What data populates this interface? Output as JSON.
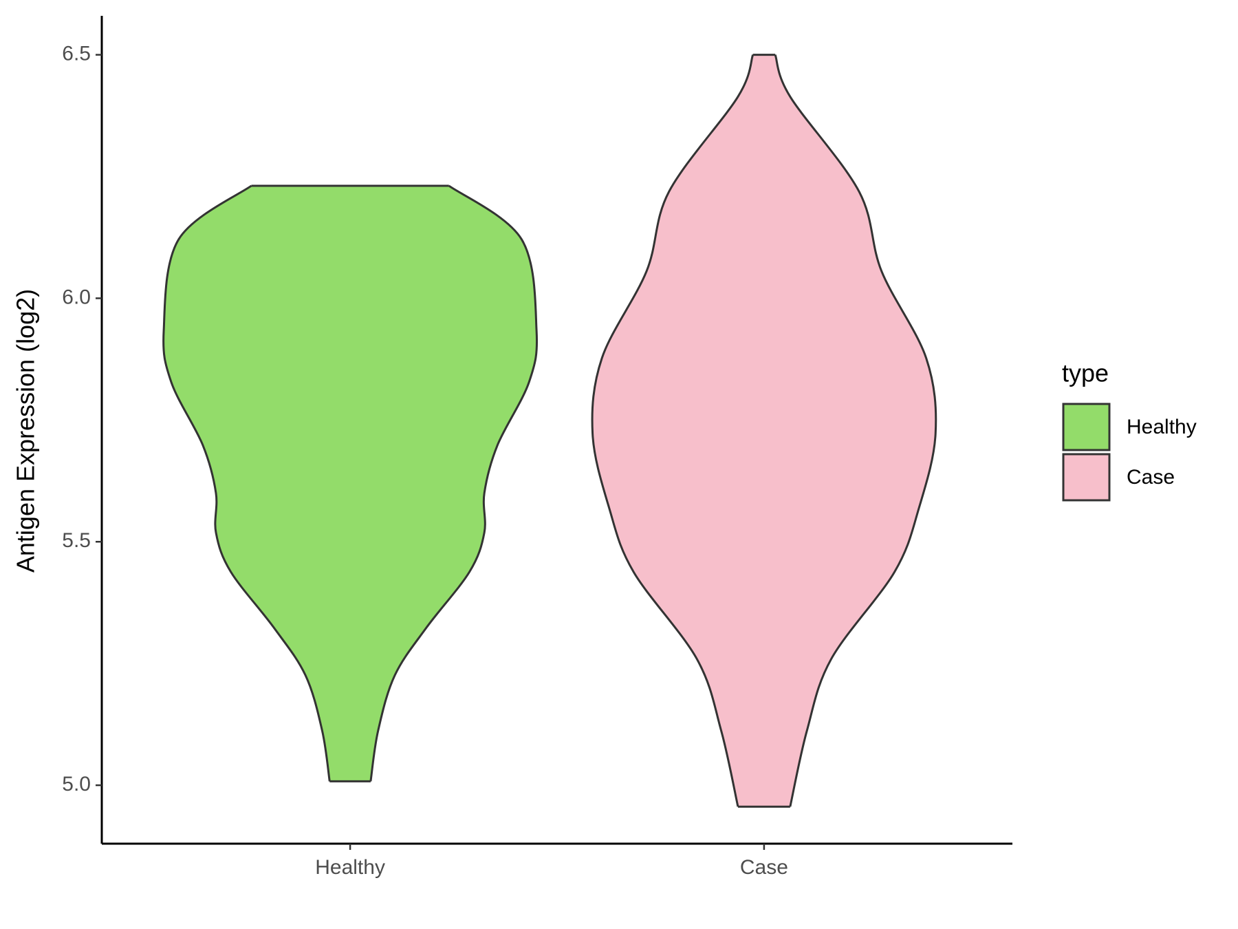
{
  "chart_data": {
    "type": "violin",
    "y_label": "Antigen Expression (log2)",
    "categories": [
      "Healthy",
      "Case"
    ],
    "ylim": [
      4.88,
      6.58
    ],
    "yticks": [
      {
        "value": 5,
        "label": "5.0"
      },
      5.5,
      {
        "value": 6,
        "label": "6.0"
      },
      6.5
    ],
    "legend_title": "type",
    "legend_position": "right",
    "series": [
      {
        "name": "Healthy",
        "color": "#93dc6a",
        "y": [
          6.231,
          6.121,
          5.934,
          5.828,
          5.698,
          5.6,
          5.519,
          5.438,
          5.324,
          5.226,
          5.112,
          5.008
        ],
        "widths": [
          0.53,
          0.92,
          1.0,
          0.96,
          0.79,
          0.72,
          0.72,
          0.64,
          0.41,
          0.24,
          0.15,
          0.11
        ]
      },
      {
        "name": "Case",
        "color": "#f7bfcb",
        "y": [
          6.5,
          6.414,
          6.219,
          6.056,
          5.877,
          5.722,
          5.568,
          5.438,
          5.259,
          5.112,
          4.956
        ],
        "widths": [
          0.06,
          0.14,
          0.51,
          0.63,
          0.87,
          0.92,
          0.83,
          0.7,
          0.36,
          0.23,
          0.14
        ]
      }
    ]
  }
}
